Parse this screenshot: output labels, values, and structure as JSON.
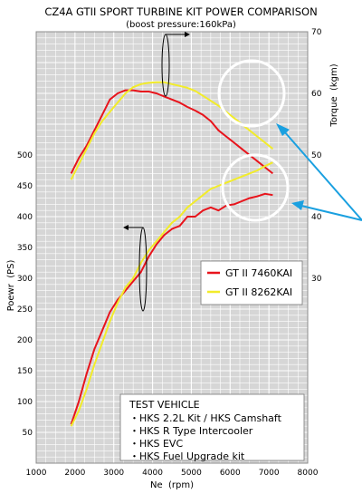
{
  "chart_data": {
    "type": "line",
    "title": "CZ4A GTII SPORT TURBINE KIT POWER COMPARISON",
    "subtitle": "(boost pressure:160kPa)",
    "xlabel": "Ne  (rpm)",
    "ylabel_left": "Poewr  (PS)",
    "ylabel_right": "Torque  (kgm)",
    "xlim": [
      1000,
      8000
    ],
    "ylim_left": [
      0,
      700
    ],
    "ylim_right": [
      0,
      70
    ],
    "x_ticks": [
      "1000",
      "2000",
      "3000",
      "4000",
      "5000",
      "6000",
      "7000",
      "8000"
    ],
    "y_left_ticks": [
      "50",
      "100",
      "150",
      "200",
      "250",
      "300",
      "350",
      "400",
      "450",
      "500"
    ],
    "y_right_ticks": [
      "30",
      "40",
      "50",
      "60",
      "70"
    ],
    "grid": true,
    "legend_position": "center-right",
    "series": [
      {
        "name": "GT II 7460KAI",
        "color": "#e8141c",
        "power": {
          "x": [
            1900,
            2100,
            2300,
            2500,
            2700,
            2900,
            3100,
            3300,
            3500,
            3700,
            3900,
            4100,
            4300,
            4500,
            4700,
            4900,
            5100,
            5300,
            5500,
            5700,
            5900,
            6100,
            6300,
            6500,
            6700,
            6900,
            7100
          ],
          "y": [
            63,
            100,
            145,
            185,
            215,
            245,
            265,
            280,
            295,
            310,
            335,
            355,
            370,
            380,
            385,
            400,
            400,
            410,
            415,
            410,
            418,
            420,
            425,
            430,
            433,
            437,
            435
          ]
        },
        "torque": {
          "x": [
            1900,
            2100,
            2300,
            2500,
            2700,
            2900,
            3000,
            3100,
            3300,
            3500,
            3700,
            3900,
            4100,
            4300,
            4500,
            4700,
            4900,
            5100,
            5300,
            5500,
            5700,
            5900,
            6100,
            6300,
            6500,
            6700,
            6900,
            7100
          ],
          "y": [
            47,
            49.5,
            51.5,
            54,
            56.5,
            59,
            59.5,
            60,
            60.5,
            60.5,
            60.3,
            60.3,
            60,
            59.5,
            59,
            58.5,
            57.8,
            57.2,
            56.5,
            55.5,
            54,
            53,
            52,
            51,
            50,
            49,
            48,
            47
          ]
        }
      },
      {
        "name": "GT II 8262KAI",
        "color": "#f2ec2a",
        "power": {
          "x": [
            1900,
            2100,
            2300,
            2500,
            2700,
            2900,
            3100,
            3300,
            3500,
            3700,
            3900,
            4100,
            4300,
            4500,
            4700,
            4900,
            5100,
            5300,
            5500,
            5700,
            5900,
            6100,
            6300,
            6500,
            6700,
            6900,
            7100
          ],
          "y": [
            60,
            85,
            120,
            160,
            195,
            230,
            260,
            285,
            300,
            325,
            345,
            360,
            375,
            390,
            400,
            415,
            425,
            435,
            445,
            450,
            455,
            460,
            465,
            470,
            475,
            482,
            488
          ]
        },
        "torque": {
          "x": [
            1900,
            2100,
            2300,
            2500,
            2700,
            2900,
            3100,
            3300,
            3500,
            3700,
            3900,
            4100,
            4300,
            4500,
            4700,
            4900,
            5100,
            5300,
            5500,
            5700,
            5900,
            6100,
            6300,
            6500,
            6700,
            6900,
            7100
          ],
          "y": [
            46,
            48.5,
            51,
            53.5,
            55.5,
            57,
            58.5,
            60,
            61,
            61.5,
            61.7,
            61.8,
            61.8,
            61.5,
            61.2,
            60.9,
            60.4,
            59.6,
            58.8,
            58,
            57,
            56,
            55,
            54,
            53,
            52,
            51
          ]
        }
      }
    ],
    "annotations": {
      "box_title": "TEST VEHICLE",
      "box_lines": [
        "・HKS 2.2L Kit / HKS Camshaft",
        "・HKS R Type Intercooler",
        "・HKS EVC",
        "・HKS Fuel Upgrade kit"
      ]
    }
  },
  "colors": {
    "plot_background": "#d6d6d6",
    "grid": "#ffffff",
    "highlight_circle": "#ffffff",
    "pointer_arrow": "#1aa0e0"
  }
}
